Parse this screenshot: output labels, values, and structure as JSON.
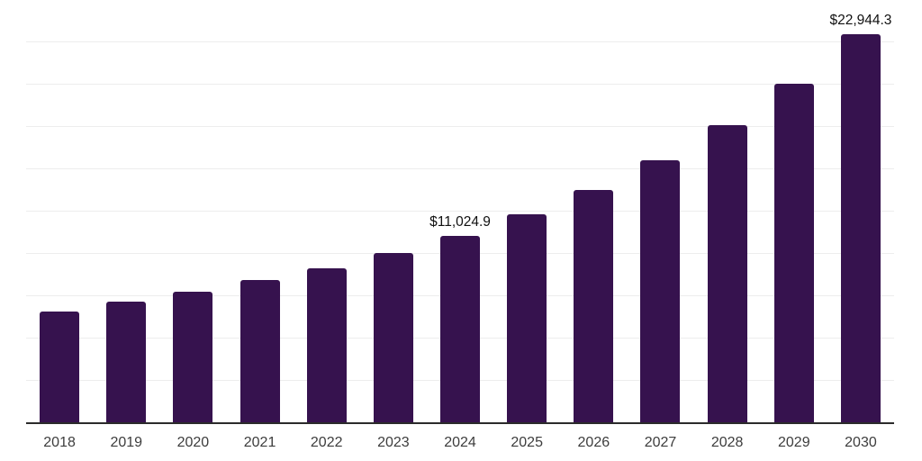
{
  "chart_data": {
    "type": "bar",
    "title": "",
    "xlabel": "",
    "ylabel": "",
    "categories": [
      "2018",
      "2019",
      "2020",
      "2021",
      "2022",
      "2023",
      "2024",
      "2025",
      "2026",
      "2027",
      "2028",
      "2029",
      "2030"
    ],
    "values": [
      6530,
      7110,
      7700,
      8390,
      9100,
      10000,
      11024.9,
      12290,
      13710,
      15480,
      17550,
      20000,
      22944.3
    ],
    "data_labels": [
      null,
      null,
      null,
      null,
      null,
      null,
      "$11,024.9",
      null,
      null,
      null,
      null,
      null,
      "$22,944.3"
    ],
    "ylim": [
      0,
      25000
    ],
    "gridline_step": 2500,
    "grid": true,
    "legend": false,
    "y_tick_labels_shown": false,
    "colors": {
      "bar": "#36124e",
      "gridline": "#ededed",
      "axis_line": "#2b2b2b",
      "data_label": "#111111",
      "x_tick_label": "#3d3d3d",
      "background": "#ffffff"
    }
  }
}
